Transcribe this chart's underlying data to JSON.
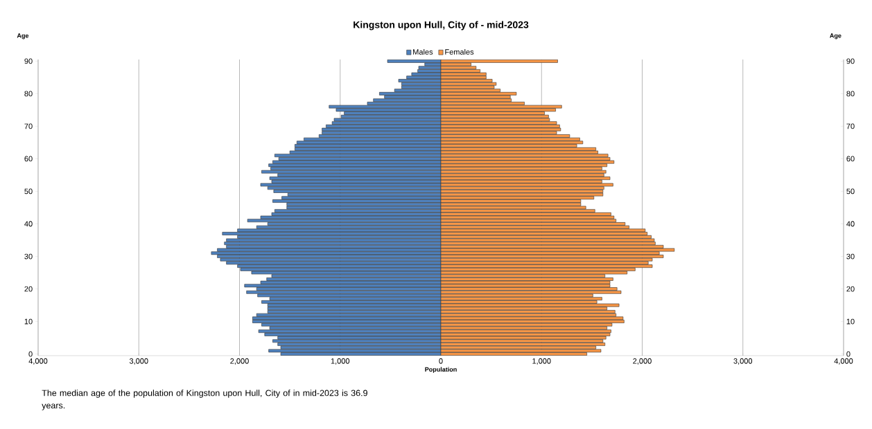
{
  "chart_data": {
    "type": "bar",
    "orientation": "horizontal",
    "stacked": true,
    "title": "Kingston upon Hull, City of - mid-2023",
    "xlabel": "Population",
    "ylabel": "Age",
    "y2label": "Age",
    "annotations": [
      "The median age of the population of Kingston upon Hull, City of in mid-2023 is 36.9 years."
    ],
    "categories": [
      "90",
      null,
      null,
      null,
      null,
      null,
      null,
      null,
      null,
      null,
      "80",
      null,
      null,
      null,
      null,
      null,
      null,
      null,
      null,
      null,
      "70",
      null,
      null,
      null,
      null,
      null,
      null,
      null,
      null,
      null,
      "60",
      null,
      null,
      null,
      null,
      null,
      null,
      null,
      null,
      null,
      "50",
      null,
      null,
      null,
      null,
      null,
      null,
      null,
      null,
      null,
      "40",
      null,
      null,
      null,
      null,
      null,
      null,
      null,
      null,
      null,
      "30",
      null,
      null,
      null,
      null,
      null,
      null,
      null,
      null,
      null,
      "20",
      null,
      null,
      null,
      null,
      null,
      null,
      null,
      null,
      null,
      "10",
      null,
      null,
      null,
      null,
      null,
      null,
      null,
      null,
      null,
      "0"
    ],
    "series": [
      {
        "name": "Males",
        "color": "#4f81bd",
        "values": [
          -530,
          -160,
          -220,
          -230,
          -290,
          -340,
          -420,
          -390,
          -390,
          -460,
          -610,
          -560,
          -670,
          -730,
          -1110,
          -1040,
          -960,
          -990,
          -1060,
          -1080,
          -1140,
          -1180,
          -1180,
          -1210,
          -1360,
          -1430,
          -1450,
          -1450,
          -1500,
          -1650,
          -1610,
          -1670,
          -1710,
          -1690,
          -1780,
          -1620,
          -1700,
          -1680,
          -1790,
          -1720,
          -1660,
          -1520,
          -1580,
          -1670,
          -1530,
          -1530,
          -1650,
          -1680,
          -1790,
          -1920,
          -1720,
          -1830,
          -2020,
          -2170,
          -2020,
          -2130,
          -2150,
          -2130,
          -2220,
          -2280,
          -2220,
          -2190,
          -2130,
          -2020,
          -1990,
          -1880,
          -1680,
          -1730,
          -1790,
          -1950,
          -1830,
          -1930,
          -1820,
          -1700,
          -1780,
          -1720,
          -1720,
          -1720,
          -1830,
          -1870,
          -1870,
          -1780,
          -1700,
          -1810,
          -1750,
          -1620,
          -1670,
          -1620,
          -1590,
          -1710,
          -1590
        ]
      },
      {
        "name": "Females",
        "color": "#f79646",
        "values": [
          1160,
          300,
          350,
          390,
          450,
          450,
          510,
          550,
          530,
          590,
          750,
          690,
          700,
          830,
          1200,
          1140,
          1030,
          1070,
          1080,
          1150,
          1180,
          1190,
          1150,
          1280,
          1380,
          1410,
          1350,
          1540,
          1560,
          1660,
          1680,
          1720,
          1650,
          1600,
          1640,
          1620,
          1680,
          1600,
          1710,
          1620,
          1610,
          1610,
          1520,
          1390,
          1390,
          1440,
          1530,
          1690,
          1720,
          1740,
          1830,
          1870,
          2030,
          2050,
          2090,
          2120,
          2130,
          2210,
          2320,
          2170,
          2210,
          2100,
          2060,
          2100,
          1930,
          1850,
          1630,
          1710,
          1680,
          1680,
          1750,
          1790,
          1510,
          1600,
          1550,
          1770,
          1650,
          1730,
          1740,
          1810,
          1820,
          1700,
          1650,
          1690,
          1680,
          1640,
          1610,
          1630,
          1540,
          1590,
          1450
        ]
      }
    ],
    "xlim": [
      -4000,
      4000
    ],
    "xticks": [
      {
        "value": -4000,
        "label": "4,000"
      },
      {
        "value": -3000,
        "label": "3,000"
      },
      {
        "value": -2000,
        "label": "2,000"
      },
      {
        "value": -1000,
        "label": "1,000"
      },
      0,
      {
        "value": 1000,
        "label": "1,000"
      },
      {
        "value": 2000,
        "label": "2,000"
      },
      {
        "value": 3000,
        "label": "3,000"
      },
      {
        "value": 4000,
        "label": "4,000"
      }
    ],
    "grid": "x",
    "legend": "top"
  }
}
